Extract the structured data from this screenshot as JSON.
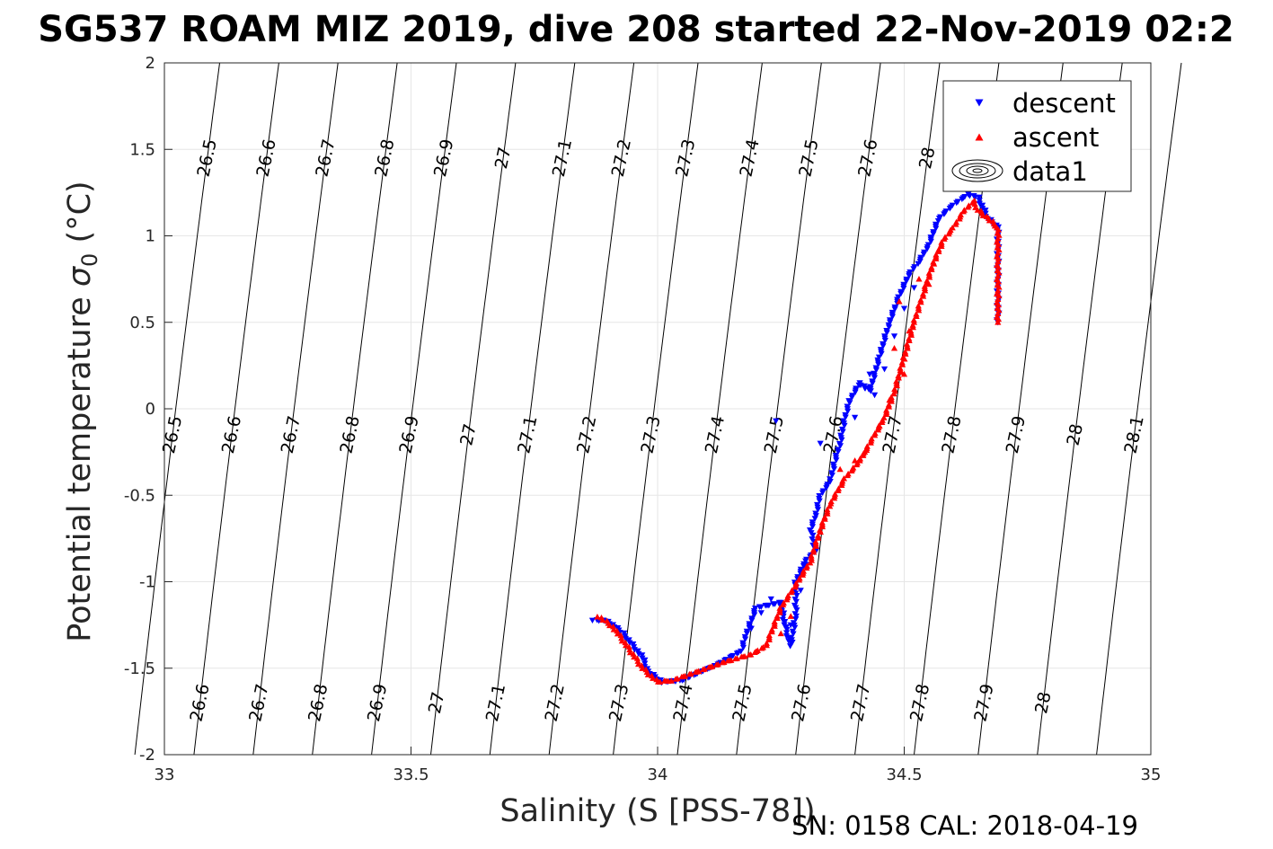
{
  "title": "SG537 ROAM MIZ 2019, dive 208 started 22-Nov-2019 02:2",
  "footer": "SN: 0158  CAL: 2018-04-19",
  "chart_data": {
    "type": "scatter",
    "xlabel": "Salinity (S [PSS-78])",
    "ylabel": "Potential temperature σ₀ (°C)",
    "ylabel_main": "Potential temperature ",
    "ylabel_sigma": "σ",
    "ylabel_sub": "0",
    "ylabel_unit": " (°C)",
    "xlim": [
      33,
      35
    ],
    "ylim": [
      -2,
      2
    ],
    "xticks": [
      "33",
      "33.5",
      "34",
      "34.5",
      "35"
    ],
    "yticks": [
      "-2",
      "-1.5",
      "-1",
      "-0.5",
      "0",
      "0.5",
      "1",
      "1.5",
      "2"
    ],
    "grid": true,
    "legend_position": "top-right",
    "legend": [
      "descent",
      "ascent",
      "data1"
    ],
    "series": [
      {
        "name": "descent",
        "marker": "triangle-down",
        "color": "#0000ff",
        "path": [
          [
            33.87,
            -1.22
          ],
          [
            33.9,
            -1.23
          ],
          [
            33.93,
            -1.3
          ],
          [
            33.97,
            -1.44
          ],
          [
            33.98,
            -1.52
          ],
          [
            34.01,
            -1.58
          ],
          [
            34.05,
            -1.57
          ],
          [
            34.12,
            -1.48
          ],
          [
            34.17,
            -1.4
          ],
          [
            34.18,
            -1.3
          ],
          [
            34.2,
            -1.15
          ],
          [
            34.25,
            -1.12
          ],
          [
            34.26,
            -1.28
          ],
          [
            34.27,
            -1.37
          ],
          [
            34.28,
            -1.2
          ],
          [
            34.28,
            -1.0
          ],
          [
            34.3,
            -0.88
          ],
          [
            34.32,
            -0.82
          ],
          [
            34.31,
            -0.7
          ],
          [
            34.32,
            -0.62
          ],
          [
            34.33,
            -0.5
          ],
          [
            34.35,
            -0.42
          ],
          [
            34.36,
            -0.3
          ],
          [
            34.37,
            -0.2
          ],
          [
            34.38,
            -0.05
          ],
          [
            34.39,
            0.05
          ],
          [
            34.41,
            0.15
          ],
          [
            34.43,
            0.1
          ],
          [
            34.45,
            0.3
          ],
          [
            34.47,
            0.5
          ],
          [
            34.49,
            0.65
          ],
          [
            34.51,
            0.78
          ],
          [
            34.53,
            0.85
          ],
          [
            34.55,
            0.95
          ],
          [
            34.57,
            1.1
          ],
          [
            34.6,
            1.18
          ],
          [
            34.63,
            1.24
          ],
          [
            34.65,
            1.22
          ],
          [
            34.67,
            1.1
          ],
          [
            34.69,
            1.05
          ],
          [
            34.69,
            0.9
          ],
          [
            34.69,
            0.7
          ],
          [
            34.69,
            0.5
          ]
        ],
        "scatter": [
          [
            34.24,
            -0.07
          ],
          [
            34.33,
            -0.2
          ],
          [
            34.4,
            -0.05
          ],
          [
            34.42,
            0.12
          ],
          [
            34.43,
            0.2
          ],
          [
            34.44,
            0.08
          ],
          [
            34.46,
            0.23
          ],
          [
            34.48,
            0.42
          ],
          [
            34.5,
            0.58
          ],
          [
            34.52,
            0.7
          ],
          [
            34.3,
            -0.9
          ],
          [
            34.29,
            -1.05
          ],
          [
            34.27,
            -1.25
          ],
          [
            34.21,
            -1.18
          ],
          [
            34.23,
            -1.1
          ],
          [
            34.25,
            -1.17
          ],
          [
            34.19,
            -1.27
          ]
        ]
      },
      {
        "name": "ascent",
        "marker": "triangle-up",
        "color": "#ff0000",
        "path": [
          [
            33.88,
            -1.2
          ],
          [
            33.91,
            -1.26
          ],
          [
            33.94,
            -1.38
          ],
          [
            33.97,
            -1.5
          ],
          [
            34.0,
            -1.58
          ],
          [
            34.03,
            -1.57
          ],
          [
            34.08,
            -1.52
          ],
          [
            34.14,
            -1.46
          ],
          [
            34.19,
            -1.42
          ],
          [
            34.22,
            -1.37
          ],
          [
            34.25,
            -1.15
          ],
          [
            34.28,
            -1.02
          ],
          [
            34.31,
            -0.88
          ],
          [
            34.33,
            -0.7
          ],
          [
            34.35,
            -0.55
          ],
          [
            34.38,
            -0.4
          ],
          [
            34.41,
            -0.3
          ],
          [
            34.43,
            -0.2
          ],
          [
            34.46,
            -0.05
          ],
          [
            34.48,
            0.1
          ],
          [
            34.5,
            0.3
          ],
          [
            34.52,
            0.5
          ],
          [
            34.54,
            0.68
          ],
          [
            34.56,
            0.85
          ],
          [
            34.58,
            0.98
          ],
          [
            34.6,
            1.05
          ],
          [
            34.62,
            1.14
          ],
          [
            34.64,
            1.2
          ],
          [
            34.65,
            1.15
          ],
          [
            34.67,
            1.1
          ],
          [
            34.69,
            1.05
          ],
          [
            34.69,
            0.85
          ],
          [
            34.69,
            0.65
          ],
          [
            34.69,
            0.5
          ]
        ],
        "scatter": [
          [
            34.37,
            -0.35
          ],
          [
            34.4,
            -0.3
          ],
          [
            34.42,
            -0.25
          ],
          [
            34.45,
            -0.1
          ],
          [
            34.47,
            0.05
          ],
          [
            34.5,
            0.2
          ],
          [
            34.48,
            0.35
          ],
          [
            34.51,
            0.45
          ],
          [
            34.49,
            0.62
          ],
          [
            34.53,
            0.75
          ],
          [
            34.55,
            0.72
          ],
          [
            34.27,
            -1.2
          ],
          [
            34.25,
            -1.3
          ]
        ]
      }
    ],
    "contours": {
      "label": "data1",
      "levels": [
        "26.5",
        "26.6",
        "26.7",
        "26.8",
        "26.9",
        "27",
        "27.1",
        "27.2",
        "27.3",
        "27.4",
        "27.5",
        "27.6",
        "27.7",
        "27.8",
        "27.9",
        "28",
        "28.1"
      ],
      "xpos_at_ybottom": [
        32.94,
        33.06,
        33.18,
        33.3,
        33.42,
        33.54,
        33.66,
        33.78,
        33.91,
        34.04,
        34.16,
        34.28,
        34.4,
        34.52,
        34.65,
        34.77,
        34.89
      ],
      "labels_row1": [
        "26.6",
        "26.7",
        "26.8",
        "26.9",
        "27",
        "27.1",
        "27.2",
        "27.3",
        "27.4",
        "27.5",
        "27.6",
        "27.7",
        "27.8",
        "27.9",
        "28"
      ],
      "labels_row2": [
        "26.5",
        "26.6",
        "26.7",
        "26.8",
        "26.9",
        "27",
        "27.1",
        "27.2",
        "27.3",
        "27.4",
        "27.5",
        "27.6",
        "27.7",
        "27.8",
        "27.9",
        "28",
        "28.1"
      ],
      "labels_row3": [
        "26.5",
        "26.6",
        "26.7",
        "26.8",
        "26.9",
        "27",
        "27.1",
        "27.2",
        "27.3",
        "27.4",
        "27.5",
        "27.6",
        "28"
      ]
    }
  }
}
